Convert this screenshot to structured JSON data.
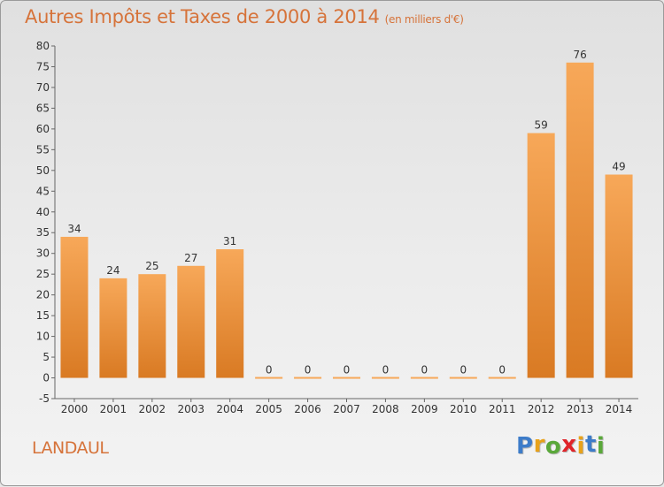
{
  "title": {
    "main": "Autres Impôts et Taxes de 2000 à 2014",
    "unit": "(en milliers d'€)"
  },
  "commune": "LANDAUL",
  "brand": {
    "letters": [
      "P",
      "r",
      "o",
      "x",
      "i",
      "t",
      "i"
    ],
    "colors": [
      "#3d7cc9",
      "#e8a21a",
      "#5aa83a",
      "#e0242a",
      "#e8a21a",
      "#3d7cc9",
      "#5aa83a"
    ]
  },
  "colors": {
    "bar_light": "#f7a859",
    "bar_dark": "#d97a23",
    "title": "#d6733a"
  },
  "chart_data": {
    "type": "bar",
    "categories": [
      "2000",
      "2001",
      "2002",
      "2003",
      "2004",
      "2005",
      "2006",
      "2007",
      "2008",
      "2009",
      "2010",
      "2011",
      "2012",
      "2013",
      "2014"
    ],
    "values": [
      34,
      24,
      25,
      27,
      31,
      0,
      0,
      0,
      0,
      0,
      0,
      0,
      59,
      76,
      49
    ],
    "data_labels": [
      "34",
      "24",
      "25",
      "27",
      "31",
      "0",
      "0",
      "0",
      "0",
      "0",
      "0",
      "0",
      "59",
      "76",
      "49"
    ],
    "yticks": [
      "-5",
      "0",
      "5",
      "10",
      "15",
      "20",
      "25",
      "30",
      "35",
      "40",
      "45",
      "50",
      "55",
      "60",
      "65",
      "70",
      "75",
      "80"
    ],
    "ylim": [
      -5,
      80
    ],
    "title": "Autres Impôts et Taxes de 2000 à 2014",
    "xlabel": "",
    "ylabel": "",
    "grid": false,
    "legend": "none"
  }
}
